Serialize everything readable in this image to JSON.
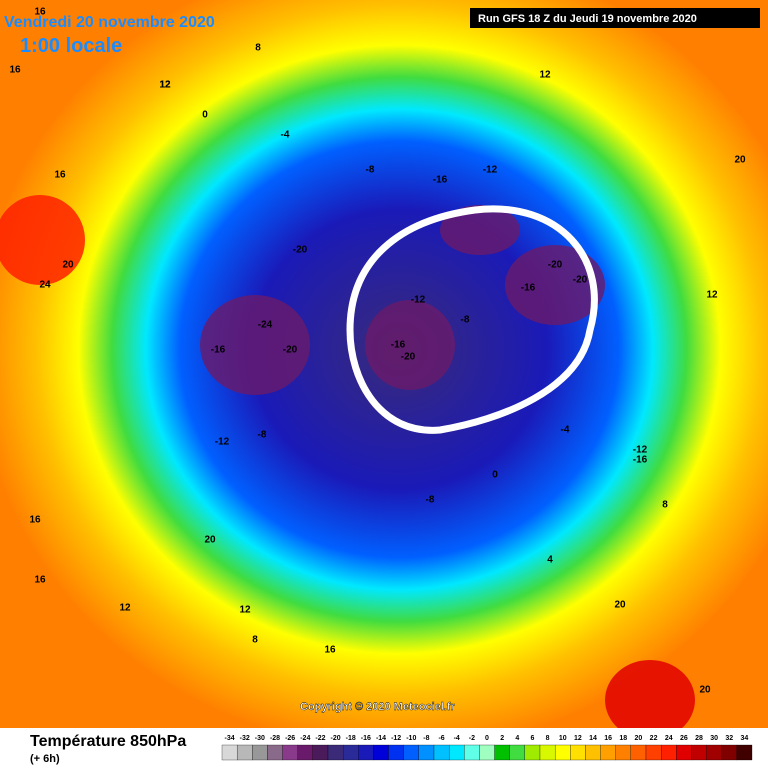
{
  "header": {
    "date": "Vendredi 20 novembre 2020",
    "time": "1:00 locale",
    "run": "Run GFS 18 Z du Jeudi 19 novembre 2020"
  },
  "copyright": "Copyright © 2020 Meteociel.fr",
  "legend": {
    "title": "Température 850hPa",
    "lead": "(+ 6h)",
    "ticks": [
      "-34",
      "-32",
      "-30",
      "-28",
      "-26",
      "-24",
      "-22",
      "-20",
      "-18",
      "-16",
      "-14",
      "-12",
      "-10",
      "-8",
      "-6",
      "-4",
      "-2",
      "0",
      "2",
      "4",
      "6",
      "8",
      "10",
      "12",
      "14",
      "16",
      "18",
      "20",
      "22",
      "24",
      "26",
      "28",
      "30",
      "32",
      "34"
    ],
    "colors": [
      "#d8d8d8",
      "#b8b8b8",
      "#989898",
      "#8a6a8a",
      "#8a3a8a",
      "#6a1a6a",
      "#4a1a5a",
      "#3a2a78",
      "#2a2a98",
      "#1a1ab8",
      "#0000d8",
      "#0030f0",
      "#0060ff",
      "#0090ff",
      "#00c0ff",
      "#00e8ff",
      "#60ffe8",
      "#a0ffc0",
      "#00c000",
      "#40dc40",
      "#a0ec00",
      "#d8f800",
      "#ffff00",
      "#ffe000",
      "#ffc000",
      "#ffa000",
      "#ff8000",
      "#ff6000",
      "#ff4000",
      "#ff2000",
      "#e00000",
      "#c00000",
      "#a00000",
      "#800000",
      "#400000"
    ]
  },
  "map": {
    "labels": [
      "16",
      "8",
      "12",
      "12",
      "16",
      "16",
      "20",
      "20",
      "24",
      "20",
      "0",
      "-4",
      "-8",
      "-12",
      "-16",
      "-20",
      "-24",
      "-16",
      "-20",
      "-12",
      "-8",
      "-16",
      "-20",
      "-12",
      "-8",
      "-20",
      "-16",
      "-20",
      "-16",
      "-12",
      "-8",
      "-4",
      "0",
      "4",
      "8",
      "12",
      "12",
      "16",
      "16",
      "20",
      "20",
      "12",
      "8",
      "12",
      "16",
      "20"
    ]
  }
}
